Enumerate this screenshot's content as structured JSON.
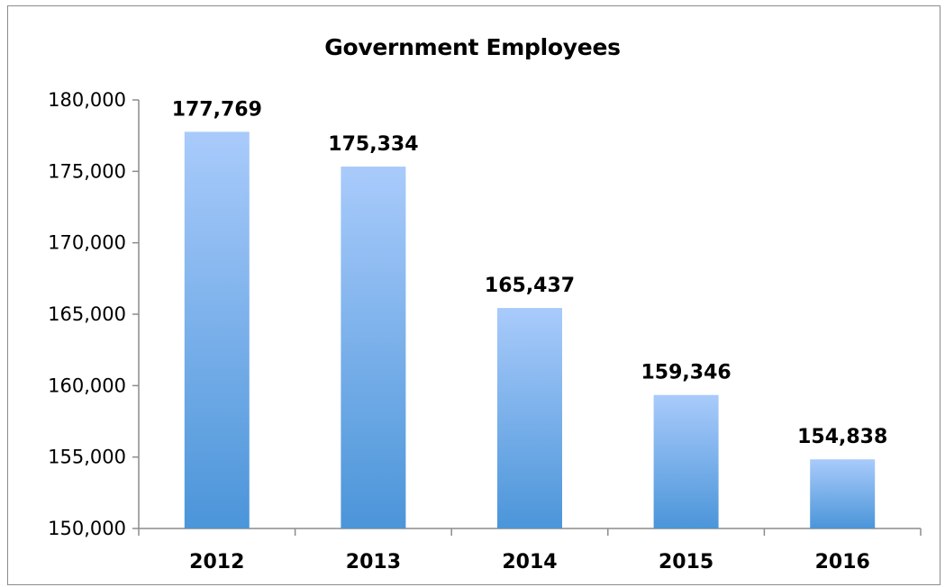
{
  "chart_data": {
    "type": "bar",
    "title": "Government Employees",
    "xlabel": "",
    "ylabel": "",
    "categories": [
      "2012",
      "2013",
      "2014",
      "2015",
      "2016"
    ],
    "values": [
      177769,
      175334,
      165437,
      159346,
      154838
    ],
    "value_labels": [
      "177,769",
      "175,334",
      "165,437",
      "159,346",
      "154,838"
    ],
    "ylim": [
      150000,
      180000
    ],
    "yticks": [
      150000,
      155000,
      160000,
      165000,
      170000,
      175000,
      180000
    ],
    "ytick_labels": [
      "150,000",
      "155,000",
      "160,000",
      "165,000",
      "170,000",
      "175,000",
      "180,000"
    ],
    "grid": false,
    "legend": "none",
    "colors": {
      "bar_top": "#a9cbfb",
      "bar_bottom": "#4b95d9",
      "axis": "#8c8c8c"
    }
  }
}
